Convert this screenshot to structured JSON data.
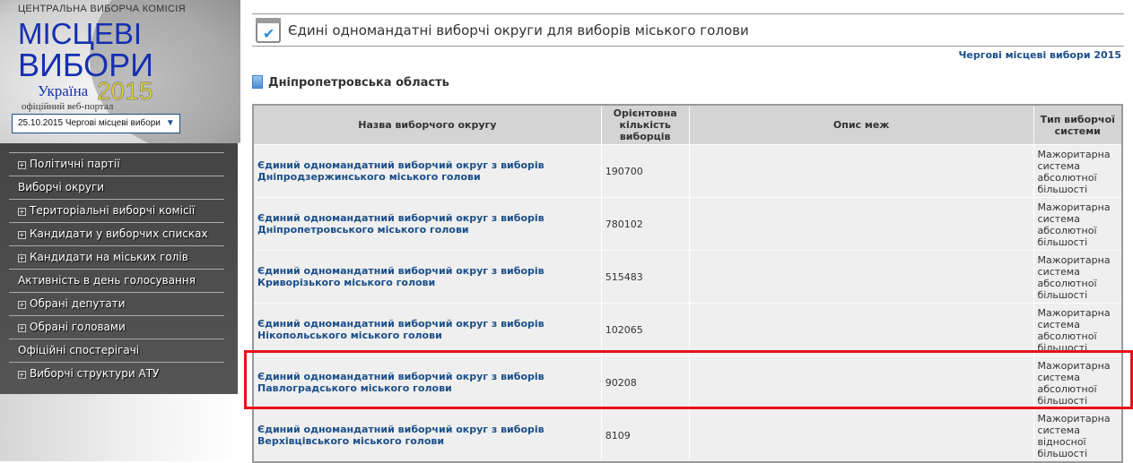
{
  "banner": {
    "cvk": "Центральна виборча комісія",
    "title1": "Місцеві",
    "title2": "вибори",
    "country": "Україна",
    "year": "2015",
    "portal": "офіційний веб-портал",
    "election_select": "25.10.2015 Чергові місцеві вибори",
    "arrow": "▼"
  },
  "menu": [
    {
      "label": "Політичні партії",
      "expandable": true
    },
    {
      "label": "Виборчі округи",
      "expandable": false
    },
    {
      "label": "Територіальні виборчі комісії",
      "expandable": true
    },
    {
      "label": "Кандидати у виборчих списках",
      "expandable": true
    },
    {
      "label": "Кандидати на міських голів",
      "expandable": true
    },
    {
      "label": "Активність в день голосування",
      "expandable": false
    },
    {
      "label": "Обрані депутати",
      "expandable": true
    },
    {
      "label": "Обрані головами",
      "expandable": true
    },
    {
      "label": "Офіційні спостерігачі",
      "expandable": false
    },
    {
      "label": "Виборчі структури АТУ",
      "expandable": true
    }
  ],
  "page": {
    "title": "Єдині одномандатні виборчі округи для виборів міського голови",
    "election_link": "Чергові місцеві вибори 2015",
    "region": "Дніпропетровська область"
  },
  "table": {
    "headers": [
      "Назва виборчого округу",
      "Орієнтовна кількість виборців",
      "Опис меж",
      "Тип виборчої системи"
    ],
    "rows": [
      {
        "name": "Єдиний одномандатний виборчий округ з виборів Дніпродзержинського міського голови",
        "voters": "190700",
        "bounds": "",
        "system": "Мажоритарна система абсолютної більшості"
      },
      {
        "name": "Єдиний одномандатний виборчий округ з виборів Дніпропетровського міського голови",
        "voters": "780102",
        "bounds": "",
        "system": "Мажоритарна система абсолютної більшості"
      },
      {
        "name": "Єдиний одномандатний виборчий округ з виборів Криворізького міського голови",
        "voters": "515483",
        "bounds": "",
        "system": "Мажоритарна система абсолютної більшості"
      },
      {
        "name": "Єдиний одномандатний виборчий округ з виборів Нікопольського міського голови",
        "voters": "102065",
        "bounds": "",
        "system": "Мажоритарна система абсолютної більшості"
      },
      {
        "name": "Єдиний одномандатний виборчий округ з виборів Павлоградського міського голови",
        "voters": "90208",
        "bounds": "",
        "system": "Мажоритарна система абсолютної більшості",
        "highlighted": true
      },
      {
        "name": "Єдиний одномандатний виборчий округ з виборів Верхівцівського міського голови",
        "voters": "8109",
        "bounds": "",
        "system": "Мажоритарна система відносної більшості"
      }
    ]
  },
  "colors": {
    "link": "#1a4f8a",
    "highlight": "#e8111b",
    "menu_bg": "#4a4a4a"
  }
}
